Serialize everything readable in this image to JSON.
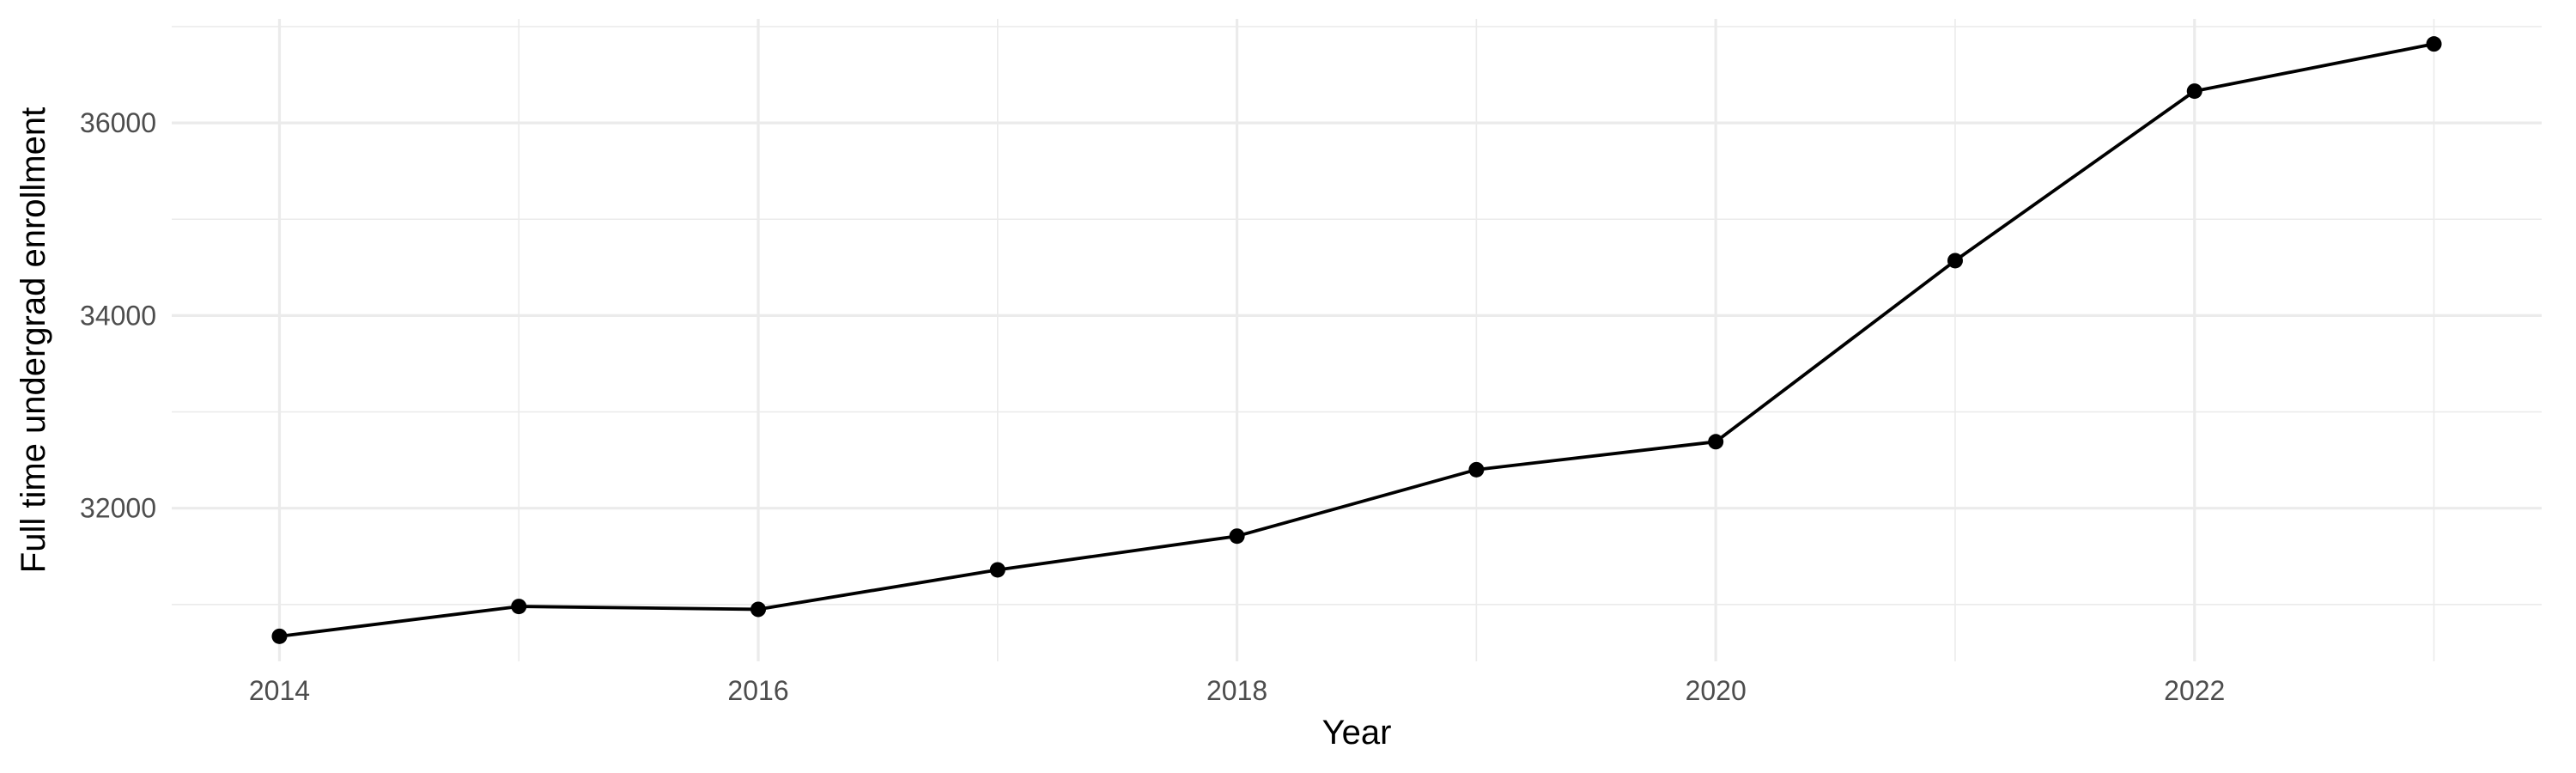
{
  "chart_data": {
    "type": "line",
    "title": "",
    "xlabel": "Year",
    "ylabel": "Full time undergrad enrollment",
    "x": [
      2014,
      2015,
      2016,
      2017,
      2018,
      2019,
      2020,
      2021,
      2022,
      2023
    ],
    "series": [
      {
        "values": [
          30670,
          30980,
          30950,
          31360,
          31710,
          32400,
          32690,
          34570,
          36330,
          36820
        ]
      }
    ],
    "xlim": [
      2013.55,
      2023.45
    ],
    "ylim": [
      30410,
      37080
    ],
    "x_major_ticks": [
      2014,
      2016,
      2018,
      2020,
      2022
    ],
    "x_minor_ticks": [
      2015,
      2017,
      2019,
      2021,
      2023
    ],
    "y_major_ticks": [
      32000,
      34000,
      36000
    ],
    "y_minor_ticks": [
      31000,
      33000,
      35000,
      37000
    ],
    "x_tick_labels": [
      "2014",
      "2016",
      "2018",
      "2020",
      "2022"
    ],
    "y_tick_labels": [
      "32000",
      "34000",
      "36000"
    ],
    "grid": true,
    "legend": "none",
    "colors": {
      "line": "#000000",
      "grid": "#ebebeb",
      "tick_text": "#4d4d4d",
      "background": "#ffffff"
    }
  }
}
